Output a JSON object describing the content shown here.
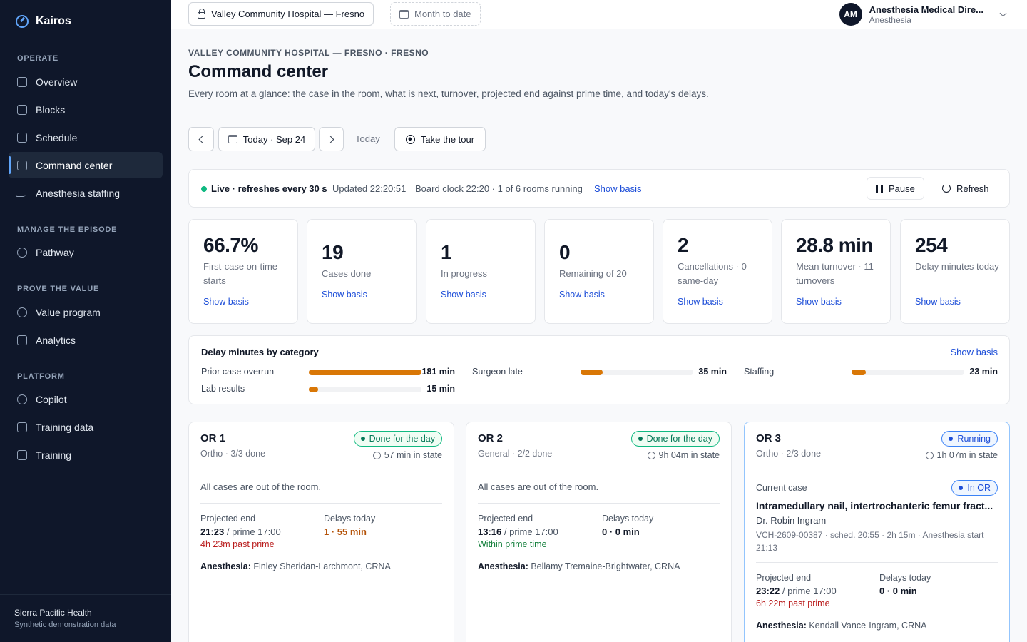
{
  "app": {
    "name": "Kairos"
  },
  "sidebar": {
    "sections": [
      {
        "title": "OPERATE"
      },
      {
        "title": "MANAGE THE EPISODE"
      },
      {
        "title": "PROVE THE VALUE"
      },
      {
        "title": "PLATFORM"
      }
    ],
    "items": [
      {
        "label": "Overview"
      },
      {
        "label": "Blocks"
      },
      {
        "label": "Schedule"
      },
      {
        "label": "Command center"
      },
      {
        "label": "Anesthesia staffing"
      },
      {
        "label": "Pathway"
      },
      {
        "label": "Value program"
      },
      {
        "label": "Analytics"
      },
      {
        "label": "Copilot"
      },
      {
        "label": "Training data"
      },
      {
        "label": "Training"
      }
    ],
    "footer": {
      "org": "Sierra Pacific Health",
      "note": "Synthetic demonstration data"
    }
  },
  "topbar": {
    "facility": "Valley Community Hospital — Fresno",
    "period": "Month to date",
    "user": {
      "initials": "AM",
      "name": "Anesthesia Medical Dire...",
      "role": "Anesthesia"
    }
  },
  "header": {
    "eyebrow": "VALLEY COMMUNITY HOSPITAL — FRESNO · FRESNO",
    "title": "Command center",
    "description": "Every room at a glance: the case in the room, what is next, turnover, projected end against prime time, and today's delays.",
    "date_label": "Today · Sep 24",
    "today": "Today",
    "tour": "Take the tour"
  },
  "live": {
    "status": "Live · refreshes every 30 s",
    "updated": "Updated 22:20:51",
    "board": "Board clock 22:20 · 1 of 6 rooms running",
    "basis": "Show basis",
    "pause": "Pause",
    "refresh": "Refresh"
  },
  "kpis": [
    {
      "value": "66.7%",
      "label": "First-case on-time starts",
      "link": "Show basis"
    },
    {
      "value": "19",
      "label": "Cases done",
      "link": "Show basis"
    },
    {
      "value": "1",
      "label": "In progress",
      "link": "Show basis"
    },
    {
      "value": "0",
      "label": "Remaining of 20",
      "link": "Show basis"
    },
    {
      "value": "2",
      "label": "Cancellations · 0 same-day",
      "link": "Show basis"
    },
    {
      "value": "28.8 min",
      "label": "Mean turnover · 11 turnovers",
      "link": "Show basis"
    },
    {
      "value": "254",
      "label": "Delay minutes today",
      "link": "Show basis"
    }
  ],
  "delays": {
    "title": "Delay minutes by category",
    "basis": "Show basis",
    "max": 181,
    "items": [
      {
        "label": "Prior case overrun",
        "minutes": 181,
        "value": "181 min"
      },
      {
        "label": "Surgeon late",
        "minutes": 35,
        "value": "35 min"
      },
      {
        "label": "Staffing",
        "minutes": 23,
        "value": "23 min"
      },
      {
        "label": "Lab results",
        "minutes": 15,
        "value": "15 min"
      }
    ]
  },
  "rooms": [
    {
      "name": "OR 1",
      "sub": "Ortho · 3/3 done",
      "status": "Done for the day",
      "state_time": "57 min in state",
      "message": "All cases are out of the room.",
      "proj_label": "Projected end",
      "proj_end": "21:23",
      "prime": "/ prime 17:00",
      "proj_note": "4h 23m past prime",
      "delay_label": "Delays today",
      "delay_val": "1 · 55 min",
      "anes_label": "Anesthesia:",
      "anes": "Finley Sheridan-Larchmont, CRNA"
    },
    {
      "name": "OR 2",
      "sub": "General · 2/2 done",
      "status": "Done for the day",
      "state_time": "9h 04m in state",
      "message": "All cases are out of the room.",
      "proj_label": "Projected end",
      "proj_end": "13:16",
      "prime": "/ prime 17:00",
      "proj_note": "Within prime time",
      "delay_label": "Delays today",
      "delay_val": "0 · 0 min",
      "anes_label": "Anesthesia:",
      "anes": "Bellamy Tremaine-Brightwater, CRNA"
    },
    {
      "name": "OR 3",
      "sub": "Ortho · 2/3 done",
      "status": "Running",
      "state_time": "1h 07m in state",
      "current_label": "Current case",
      "case_status": "In OR",
      "case_title": "Intramedullary nail, intertrochanteric femur fract...",
      "surgeon": "Dr. Robin Ingram",
      "case_meta": "VCH-2609-00387 · sched. 20:55 · 2h 15m · Anesthesia start 21:13",
      "proj_label": "Projected end",
      "proj_end": "23:22",
      "prime": "/ prime 17:00",
      "proj_note": "6h 22m past prime",
      "delay_label": "Delays today",
      "delay_val": "0 · 0 min",
      "anes_label": "Anesthesia:",
      "anes": "Kendall Vance-Ingram, CRNA"
    }
  ]
}
